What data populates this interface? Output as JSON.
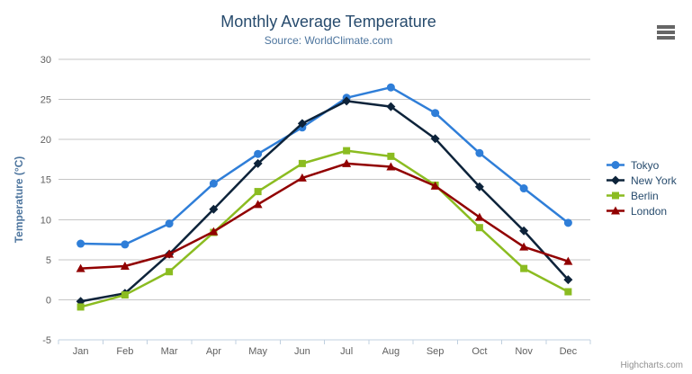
{
  "chart_data": {
    "type": "line",
    "title": "Monthly Average Temperature",
    "subtitle": "Source: WorldClimate.com",
    "xlabel": "",
    "ylabel": "Temperature (°C)",
    "ylim": [
      -5,
      30
    ],
    "ytick_step": 5,
    "grid": true,
    "legend_position": "right",
    "categories": [
      "Jan",
      "Feb",
      "Mar",
      "Apr",
      "May",
      "Jun",
      "Jul",
      "Aug",
      "Sep",
      "Oct",
      "Nov",
      "Dec"
    ],
    "series": [
      {
        "name": "Tokyo",
        "color": "#2f7ed8",
        "marker": "circle",
        "values": [
          7.0,
          6.9,
          9.5,
          14.5,
          18.2,
          21.5,
          25.2,
          26.5,
          23.3,
          18.3,
          13.9,
          9.6
        ]
      },
      {
        "name": "New York",
        "color": "#0d233a",
        "marker": "diamond",
        "values": [
          -0.2,
          0.8,
          5.7,
          11.3,
          17.0,
          22.0,
          24.8,
          24.1,
          20.1,
          14.1,
          8.6,
          2.5
        ]
      },
      {
        "name": "Berlin",
        "color": "#8bbc21",
        "marker": "square",
        "values": [
          -0.9,
          0.6,
          3.5,
          8.4,
          13.5,
          17.0,
          18.6,
          17.9,
          14.3,
          9.0,
          3.9,
          1.0
        ]
      },
      {
        "name": "London",
        "color": "#910000",
        "marker": "triangle",
        "values": [
          3.9,
          4.2,
          5.7,
          8.5,
          11.9,
          15.2,
          17.0,
          16.6,
          14.2,
          10.3,
          6.6,
          4.8
        ]
      }
    ]
  },
  "credits": {
    "label": "Highcharts.com"
  },
  "export_menu": {
    "icon": "hamburger-menu-icon"
  },
  "colors": {
    "title": "#274b6d",
    "subtitle": "#4d759e",
    "axis_title": "#4d759e",
    "axis_labels": "#606060",
    "gridline": "#c6c6c6",
    "axis_line": "#c0d0e0",
    "legend_text": "#274b6d",
    "credits": "#909090",
    "export_icon": "#666666",
    "background": "#ffffff"
  }
}
